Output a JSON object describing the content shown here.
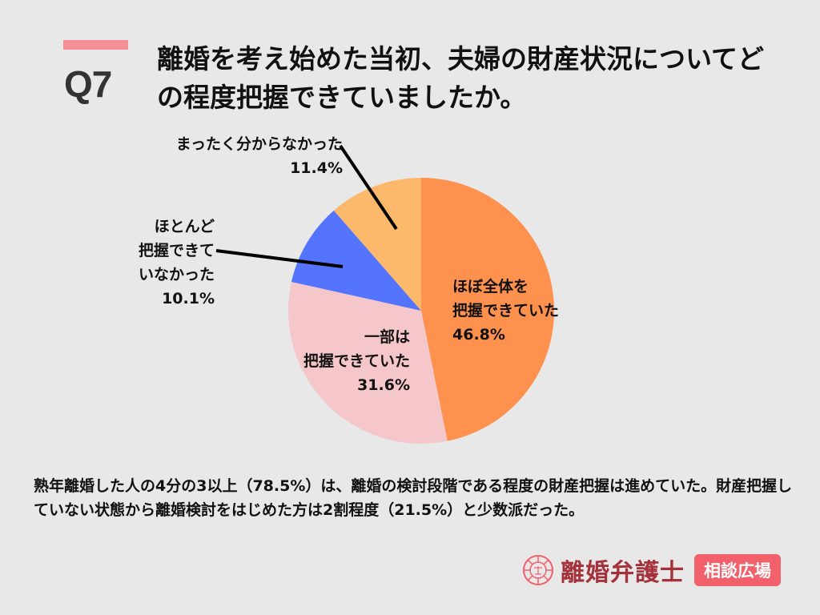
{
  "header": {
    "question_number": "Q7",
    "title": "離婚を考え始めた当初、夫婦の財産状況についてどの程度把握できていましたか。",
    "accent_color": "#f48f98"
  },
  "labels": {
    "s0": {
      "line1": "ほぼ全体を",
      "line2": "把握できていた",
      "pct": "46.8%"
    },
    "s1": {
      "line1": "一部は",
      "line2": "把握できていた",
      "pct": "31.6%"
    },
    "s2": {
      "line1": "ほとんど",
      "line2": "把握できて",
      "line3": "いなかった",
      "pct": "10.1%"
    },
    "s3": {
      "line1": "まったく分からなかった",
      "pct": "11.4%"
    }
  },
  "summary": "熟年離婚した人の4分の3以上（78.5%）は、離婚の検討段階である程度の財産把握は進めていた。財産把握していない状態から離婚検討をはじめた方は2割程度（21.5%）と少数派だった。",
  "logo": {
    "name": "離婚弁護士",
    "badge": "相談広場"
  },
  "chart_data": {
    "type": "pie",
    "title": "離婚を考え始めた当初、夫婦の財産状況についてどの程度把握できていましたか。",
    "categories": [
      "ほぼ全体を把握できていた",
      "一部は把握できていた",
      "ほとんど把握できていなかった",
      "まったく分からなかった"
    ],
    "values": [
      46.8,
      31.6,
      10.1,
      11.4
    ],
    "colors": [
      "#fd914d",
      "#f5c6ca",
      "#5474fd",
      "#fcb96b"
    ],
    "start_angle": "12 o'clock, clockwise",
    "legend": "none (direct labels)"
  }
}
